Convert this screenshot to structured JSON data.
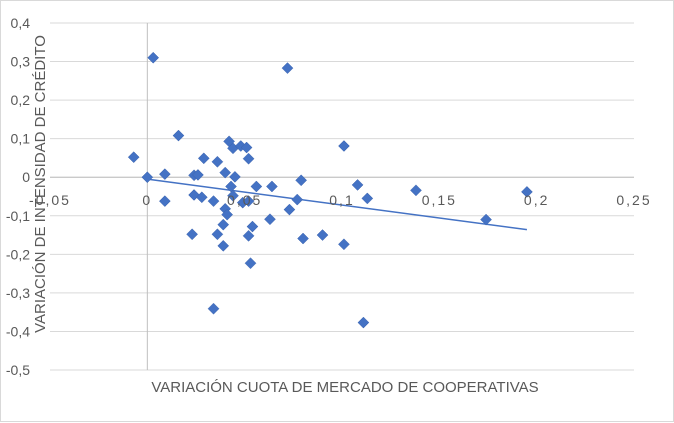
{
  "chart_data": {
    "type": "scatter",
    "title": "",
    "xlabel": "VARIACIÓN CUOTA DE MERCADO DE COOPERATIVAS",
    "ylabel": "VARIACIÓN DE INTENSIDAD DE CRÉDITO",
    "xlim": [
      -0.05,
      0.25
    ],
    "ylim": [
      -0.5,
      0.4
    ],
    "x_ticks": [
      -0.05,
      0,
      0.05,
      0.1,
      0.15,
      0.2,
      0.25
    ],
    "x_tick_labels": [
      "-0,05",
      "0",
      "0,05",
      "0,1",
      "0,15",
      "0,2",
      "0,25"
    ],
    "y_ticks": [
      -0.5,
      -0.4,
      -0.3,
      -0.2,
      -0.1,
      0,
      0.1,
      0.2,
      0.3,
      0.4
    ],
    "y_tick_labels": [
      "-0,5",
      "-0,4",
      "-0,3",
      "-0,2",
      "-0,1",
      "0",
      "0,1",
      "0,2",
      "0,3",
      "0,4"
    ],
    "grid": "horizontal",
    "legend": "none",
    "colors": {
      "marker": "#4472c4",
      "trendline": "#4472c4",
      "grid": "#d9d9d9",
      "text": "#595959"
    },
    "series": [
      {
        "marker": "diamond",
        "points": [
          [
            -0.007,
            0.052
          ],
          [
            0.003,
            0.31
          ],
          [
            0.0,
            0.0
          ],
          [
            0.009,
            0.008
          ],
          [
            0.009,
            -0.062
          ],
          [
            0.016,
            0.108
          ],
          [
            0.023,
            -0.148
          ],
          [
            0.024,
            -0.046
          ],
          [
            0.024,
            0.005
          ],
          [
            0.026,
            0.006
          ],
          [
            0.028,
            -0.052
          ],
          [
            0.029,
            0.049
          ],
          [
            0.034,
            -0.341
          ],
          [
            0.034,
            -0.062
          ],
          [
            0.036,
            0.04
          ],
          [
            0.036,
            -0.148
          ],
          [
            0.039,
            -0.178
          ],
          [
            0.039,
            -0.123
          ],
          [
            0.04,
            0.012
          ],
          [
            0.04,
            -0.082
          ],
          [
            0.041,
            -0.097
          ],
          [
            0.042,
            0.093
          ],
          [
            0.043,
            -0.024
          ],
          [
            0.044,
            0.075
          ],
          [
            0.044,
            -0.048
          ],
          [
            0.045,
            0.001
          ],
          [
            0.048,
            0.081
          ],
          [
            0.049,
            -0.066
          ],
          [
            0.051,
            0.077
          ],
          [
            0.052,
            -0.062
          ],
          [
            0.052,
            0.048
          ],
          [
            0.052,
            -0.152
          ],
          [
            0.053,
            -0.223
          ],
          [
            0.054,
            -0.128
          ],
          [
            0.056,
            -0.024
          ],
          [
            0.063,
            -0.109
          ],
          [
            0.064,
            -0.024
          ],
          [
            0.072,
            0.283
          ],
          [
            0.073,
            -0.084
          ],
          [
            0.077,
            -0.058
          ],
          [
            0.079,
            -0.008
          ],
          [
            0.08,
            -0.159
          ],
          [
            0.09,
            -0.15
          ],
          [
            0.101,
            -0.174
          ],
          [
            0.101,
            0.081
          ],
          [
            0.108,
            -0.02
          ],
          [
            0.111,
            -0.377
          ],
          [
            0.113,
            -0.055
          ],
          [
            0.138,
            -0.034
          ],
          [
            0.174,
            -0.11
          ],
          [
            0.195,
            -0.038
          ]
        ]
      }
    ],
    "trendline": {
      "type": "linear",
      "x": [
        0.0,
        0.195
      ],
      "y": [
        -0.005,
        -0.136
      ]
    }
  }
}
